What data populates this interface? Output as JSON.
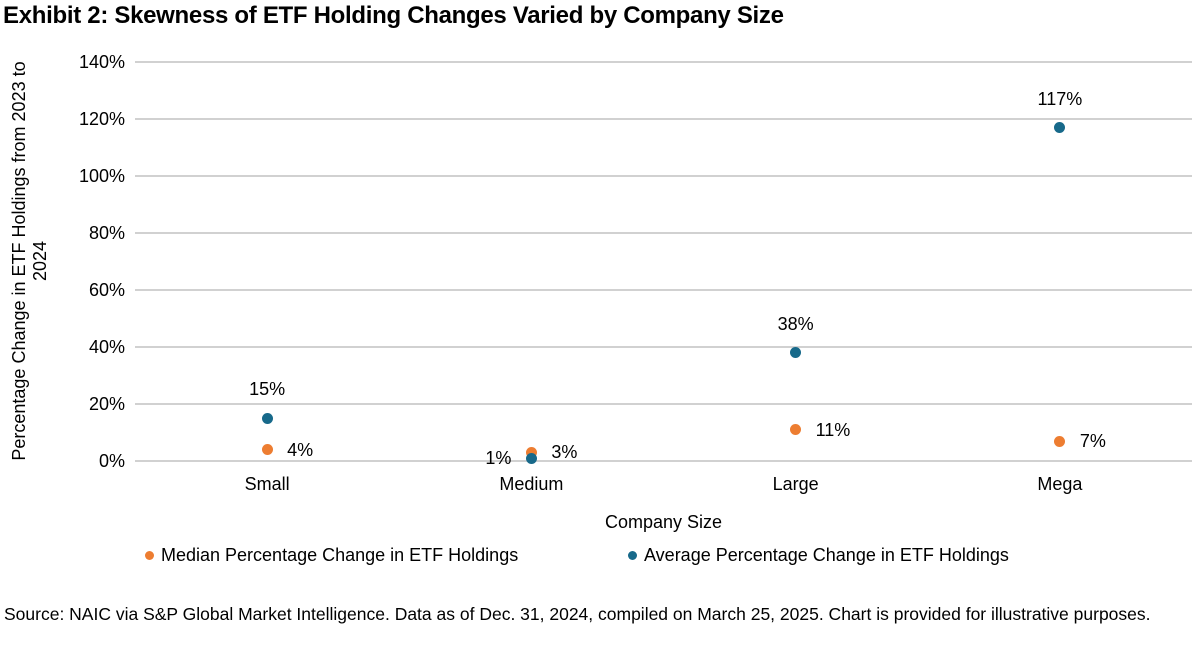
{
  "title": "Exhibit 2: Skewness of ETF Holding Changes Varied by Company Size",
  "chart_data": {
    "type": "scatter",
    "categories": [
      "Small",
      "Medium",
      "Large",
      "Mega"
    ],
    "series": [
      {
        "name": "Median Percentage Change in ETF Holdings",
        "color": "#ED7D31",
        "values": [
          4,
          3,
          11,
          7
        ],
        "point_labels": [
          "4%",
          "3%",
          "11%",
          "7%"
        ],
        "label_positions": [
          "right",
          "right",
          "right",
          "right"
        ]
      },
      {
        "name": "Average Percentage Change in ETF Holdings",
        "color": "#17698A",
        "values": [
          15,
          1,
          38,
          117
        ],
        "point_labels": [
          "15%",
          "1%",
          "38%",
          "117%"
        ],
        "label_positions": [
          "above",
          "left",
          "above",
          "above"
        ]
      }
    ],
    "xlabel": "Company Size",
    "ylabel": "Percentage Change in ETF Holdings from 2023 to 2024",
    "ylim": [
      0,
      140
    ],
    "ytick_step": 20,
    "yticks": [
      "0%",
      "20%",
      "40%",
      "60%",
      "80%",
      "100%",
      "120%",
      "140%"
    ],
    "grid": true,
    "legend_position": "bottom"
  },
  "colors": {
    "median_series": "#ED7D31",
    "average_series": "#17698A",
    "gridline": "#D1D1D1",
    "text": "#000000"
  },
  "source_note": "Source: NAIC via S&P Global Market Intelligence. Data as of Dec. 31, 2024, compiled on March 25, 2025. Chart is provided for illustrative purposes."
}
